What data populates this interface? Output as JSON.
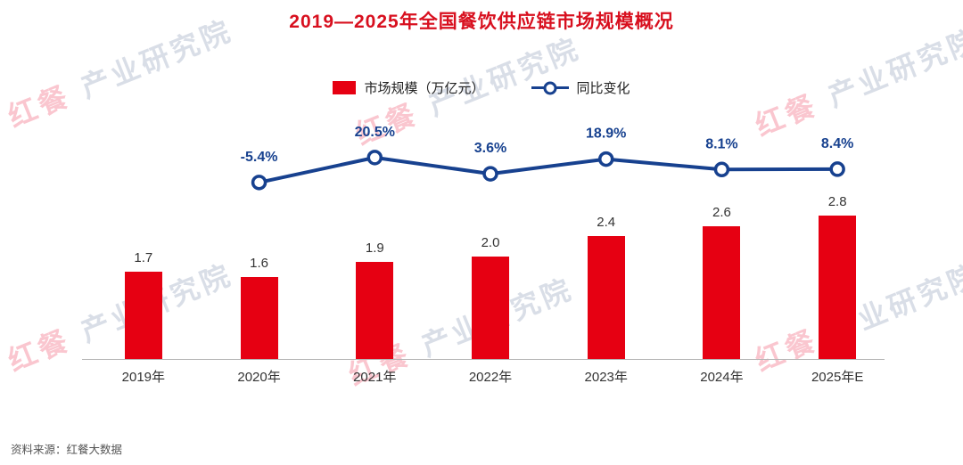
{
  "title": "2019—2025年全国餐饮供应链市场规模概况",
  "legend": {
    "bar_label": "市场规模（万亿元）",
    "line_label": "同比变化"
  },
  "source": "资料来源：红餐大数据",
  "watermark": {
    "brand": "红餐",
    "org": "产业研究院"
  },
  "colors": {
    "bar": "#e60012",
    "line": "#17418f",
    "title": "#d8101f",
    "pct_label": "#17418f",
    "value_label": "#333333",
    "axis": "#b5b5b5"
  },
  "chart_data": {
    "type": "bar",
    "subtype": "bar-line-combo",
    "title": "2019—2025年全国餐饮供应链市场规模概况",
    "categories": [
      "2019年",
      "2020年",
      "2021年",
      "2022年",
      "2023年",
      "2024年",
      "2025年E"
    ],
    "series": [
      {
        "name": "市场规模（万亿元）",
        "type": "bar",
        "unit": "万亿元",
        "values": [
          1.7,
          1.6,
          1.9,
          2.0,
          2.4,
          2.6,
          2.8
        ]
      },
      {
        "name": "同比变化",
        "type": "line",
        "unit": "%",
        "values": [
          null,
          -5.4,
          20.5,
          3.6,
          18.9,
          8.1,
          8.4
        ]
      }
    ],
    "ylim": [
      0,
      3
    ],
    "y2lim": [
      -10,
      25
    ],
    "grid": false,
    "legend_position": "top"
  }
}
